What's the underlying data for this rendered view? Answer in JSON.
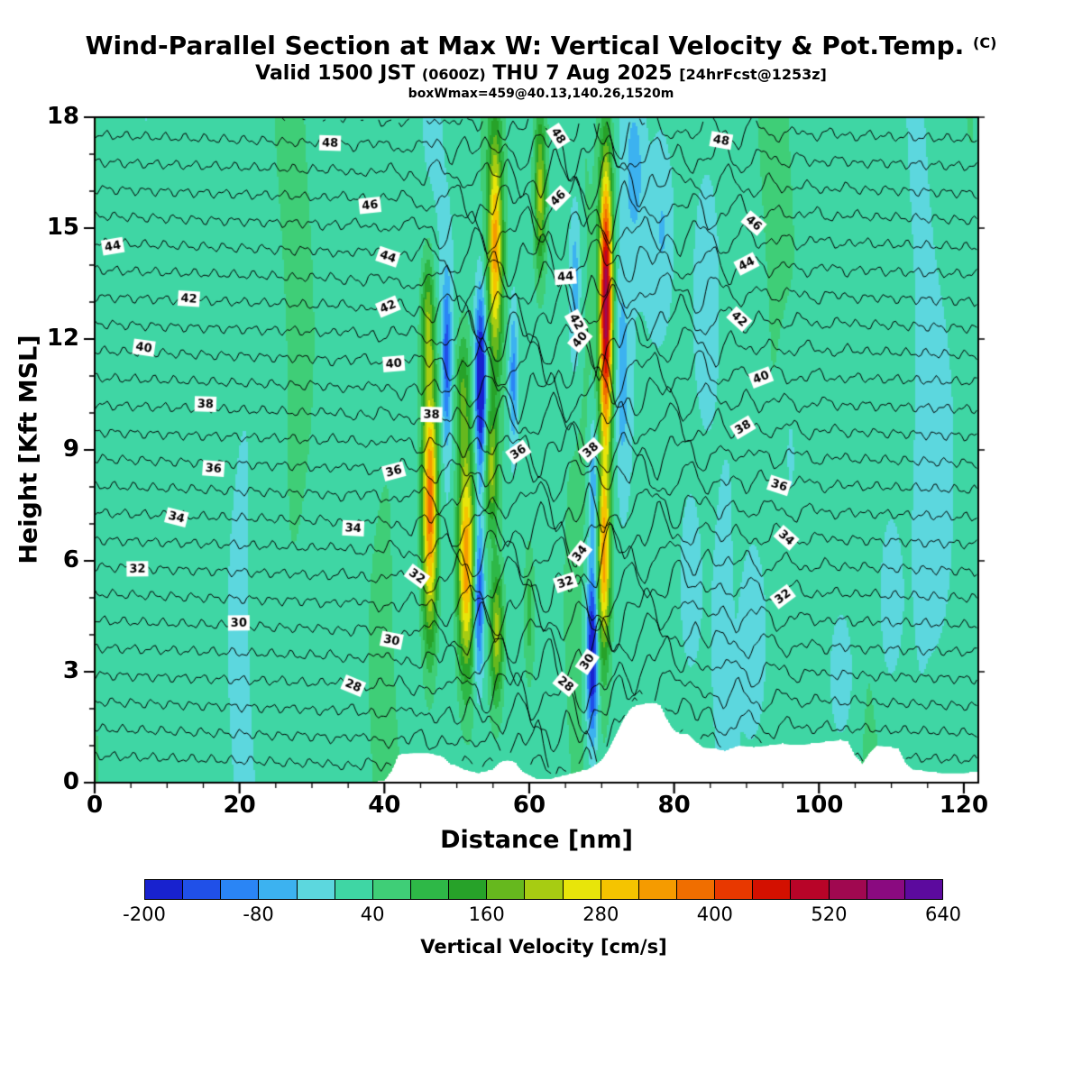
{
  "header": {
    "title_main": "Wind-Parallel Section at Max W: Vertical Velocity & Pot.Temp.",
    "title_suffix": "(C)",
    "valid_part1": "Valid 1500 JST",
    "valid_part2": "(0600Z)",
    "valid_part3": "THU 7 Aug 2025",
    "valid_part4": "[24hrFcst@1253z]",
    "info_line": "boxWmax=459@40.13,140.26,1520m"
  },
  "axes": {
    "x_label": "Distance [nm]",
    "y_label": "Height [Kft MSL]",
    "x_ticks": [
      0,
      20,
      40,
      60,
      80,
      100,
      120
    ],
    "y_ticks": [
      0,
      3,
      6,
      9,
      12,
      15,
      18
    ],
    "x_minor_step": 5,
    "y_minor_step": 1
  },
  "colorbar": {
    "label": "Vertical Velocity [cm/s]",
    "min": -200,
    "max": 640,
    "step": 40,
    "tick_values": [
      -200,
      -80,
      40,
      160,
      280,
      400,
      520,
      640
    ],
    "colors": [
      "#1822cf",
      "#2050e8",
      "#2a85f5",
      "#3cb2f0",
      "#5cd7de",
      "#3fd6a4",
      "#3fce77",
      "#2eb847",
      "#27a229",
      "#66b81e",
      "#a7cc12",
      "#e8e50a",
      "#f5c400",
      "#f59b00",
      "#f06e00",
      "#e83800",
      "#d31000",
      "#b80428",
      "#a00850",
      "#8a0a80",
      "#5c0a9e"
    ]
  },
  "chart_data": {
    "type": "contour-cross-section",
    "x_range": [
      0,
      122
    ],
    "y_range": [
      0,
      18
    ],
    "fill_variable": "vertical velocity (cm/s)",
    "contour_variable": "potential temperature (C)",
    "max_w_label": "boxWmax=459",
    "background": {
      "base": 22,
      "amp": 26
    },
    "updrafts": [
      {
        "x": 46.3,
        "sx": 1.1,
        "y": 7.5,
        "sy": 3.6,
        "amp": 380
      },
      {
        "x": 46.0,
        "sx": 0.9,
        "y": 12.5,
        "sy": 1.8,
        "amp": 160
      },
      {
        "x": 51.3,
        "sx": 1.2,
        "y": 6.0,
        "sy": 3.0,
        "amp": 330
      },
      {
        "x": 50.8,
        "sx": 1.0,
        "y": 10.5,
        "sy": 1.8,
        "amp": 140
      },
      {
        "x": 55.3,
        "sx": 1.0,
        "y": 14.5,
        "sy": 3.2,
        "amp": 300
      },
      {
        "x": 54.8,
        "sx": 0.9,
        "y": 8.5,
        "sy": 1.6,
        "amp": 180
      },
      {
        "x": 55.5,
        "sx": 0.9,
        "y": 4.0,
        "sy": 1.8,
        "amp": 200
      },
      {
        "x": 61.5,
        "sx": 0.8,
        "y": 16.0,
        "sy": 2.2,
        "amp": 200
      },
      {
        "x": 60.0,
        "sx": 0.8,
        "y": 4.5,
        "sy": 2.0,
        "amp": 90
      },
      {
        "x": 70.6,
        "sx": 0.9,
        "y": 13.0,
        "sy": 3.8,
        "amp": 520
      },
      {
        "x": 70.3,
        "sx": 0.9,
        "y": 6.0,
        "sy": 2.6,
        "amp": 300
      }
    ],
    "downdrafts": [
      {
        "x": 53.3,
        "sx": 0.75,
        "y": 10.8,
        "sy": 2.4,
        "amp": -280
      },
      {
        "x": 53.0,
        "sx": 0.7,
        "y": 5.0,
        "sy": 2.2,
        "amp": -200
      },
      {
        "x": 48.6,
        "sx": 0.6,
        "y": 11.5,
        "sy": 2.2,
        "amp": -140
      },
      {
        "x": 57.8,
        "sx": 0.6,
        "y": 11.0,
        "sy": 2.0,
        "amp": -120
      },
      {
        "x": 68.7,
        "sx": 0.8,
        "y": 3.5,
        "sy": 2.4,
        "amp": -260
      },
      {
        "x": 68.9,
        "sx": 0.7,
        "y": 8.0,
        "sy": 2.0,
        "amp": -120
      },
      {
        "x": 66.3,
        "sx": 0.9,
        "y": 13.5,
        "sy": 2.6,
        "amp": -100
      },
      {
        "x": 72.8,
        "sx": 1.0,
        "y": 11.0,
        "sy": 3.0,
        "amp": -80
      },
      {
        "x": 74.5,
        "sx": 1.2,
        "y": 16.5,
        "sy": 1.8,
        "amp": -70
      },
      {
        "x": 78.5,
        "sx": 1.6,
        "y": 15.0,
        "sy": 2.6,
        "amp": -60
      },
      {
        "x": 84.0,
        "sx": 1.6,
        "y": 13.0,
        "sy": 3.0,
        "amp": -55
      },
      {
        "x": 82.0,
        "sx": 1.4,
        "y": 5.5,
        "sy": 2.5,
        "amp": -55
      },
      {
        "x": 91.5,
        "sx": 1.8,
        "y": 4.0,
        "sy": 2.8,
        "amp": -55
      },
      {
        "x": 96.0,
        "sx": 1.5,
        "y": 9.0,
        "sy": 3.0,
        "amp": -45
      },
      {
        "x": 103.5,
        "sx": 2.0,
        "y": 3.0,
        "sy": 2.2,
        "amp": -50
      },
      {
        "x": 109.5,
        "sx": 1.6,
        "y": 5.0,
        "sy": 2.6,
        "amp": -50
      },
      {
        "x": 117.0,
        "sx": 1.8,
        "y": 8.0,
        "sy": 3.5,
        "amp": -45
      },
      {
        "x": 1.5,
        "sx": 1.2,
        "y": 9.0,
        "sy": 8.0,
        "amp": -35
      }
    ],
    "isentropes": {
      "min": 25,
      "max": 49,
      "interval": 1,
      "label_interval": 2,
      "labels": [
        {
          "v": 28,
          "x": [
            35.7,
            65
          ]
        },
        {
          "v": 30,
          "x": [
            19.9,
            41,
            68
          ]
        },
        {
          "v": 32,
          "x": [
            5.9,
            44.5,
            65,
            95
          ]
        },
        {
          "v": 34,
          "x": [
            11.3,
            35.7,
            67,
            95.5
          ]
        },
        {
          "v": 36,
          "x": [
            16.4,
            41.3,
            58.5,
            94.5
          ]
        },
        {
          "v": 38,
          "x": [
            15.3,
            46.5,
            68.5,
            89.5
          ]
        },
        {
          "v": 40,
          "x": [
            6.8,
            41.3,
            67,
            92
          ]
        },
        {
          "v": 42,
          "x": [
            13,
            40.5,
            66.5,
            89
          ]
        },
        {
          "v": 44,
          "x": [
            2.5,
            40.5,
            65,
            90
          ]
        },
        {
          "v": 46,
          "x": [
            38,
            64,
            91
          ]
        },
        {
          "v": 48,
          "x": [
            32.5,
            64,
            86.5
          ]
        }
      ]
    },
    "terrain_profile": [
      [
        0,
        0
      ],
      [
        38,
        0
      ],
      [
        40,
        0.05
      ],
      [
        41,
        0.3
      ],
      [
        42,
        0.75
      ],
      [
        44,
        0.8
      ],
      [
        46,
        0.8
      ],
      [
        47,
        0.75
      ],
      [
        48,
        0.7
      ],
      [
        49,
        0.5
      ],
      [
        50,
        0.45
      ],
      [
        51,
        0.35
      ],
      [
        52,
        0.3
      ],
      [
        53,
        0.25
      ],
      [
        54,
        0.3
      ],
      [
        55,
        0.35
      ],
      [
        56,
        0.55
      ],
      [
        57,
        0.6
      ],
      [
        58,
        0.55
      ],
      [
        59,
        0.3
      ],
      [
        60,
        0.2
      ],
      [
        61,
        0.1
      ],
      [
        63,
        0.1
      ],
      [
        65,
        0.2
      ],
      [
        67,
        0.3
      ],
      [
        68,
        0.35
      ],
      [
        69,
        0.45
      ],
      [
        70,
        0.6
      ],
      [
        71,
        0.9
      ],
      [
        72,
        1.3
      ],
      [
        73,
        1.7
      ],
      [
        74,
        2.0
      ],
      [
        75,
        2.1
      ],
      [
        77,
        2.15
      ],
      [
        78,
        2.1
      ],
      [
        79,
        1.7
      ],
      [
        80,
        1.4
      ],
      [
        81,
        1.3
      ],
      [
        82,
        1.3
      ],
      [
        83,
        1.1
      ],
      [
        84,
        0.95
      ],
      [
        86,
        0.9
      ],
      [
        87,
        0.85
      ],
      [
        89,
        1.0
      ],
      [
        91,
        0.95
      ],
      [
        93,
        1.0
      ],
      [
        95,
        1.05
      ],
      [
        97,
        1.0
      ],
      [
        99,
        1.05
      ],
      [
        101,
        1.1
      ],
      [
        103,
        1.15
      ],
      [
        104,
        1.1
      ],
      [
        105,
        0.7
      ],
      [
        106,
        0.5
      ],
      [
        107,
        0.8
      ],
      [
        108,
        1.0
      ],
      [
        110,
        0.95
      ],
      [
        111,
        0.9
      ],
      [
        112,
        0.5
      ],
      [
        113,
        0.35
      ],
      [
        115,
        0.3
      ],
      [
        117,
        0.25
      ],
      [
        120,
        0.25
      ],
      [
        122,
        0.3
      ]
    ]
  }
}
